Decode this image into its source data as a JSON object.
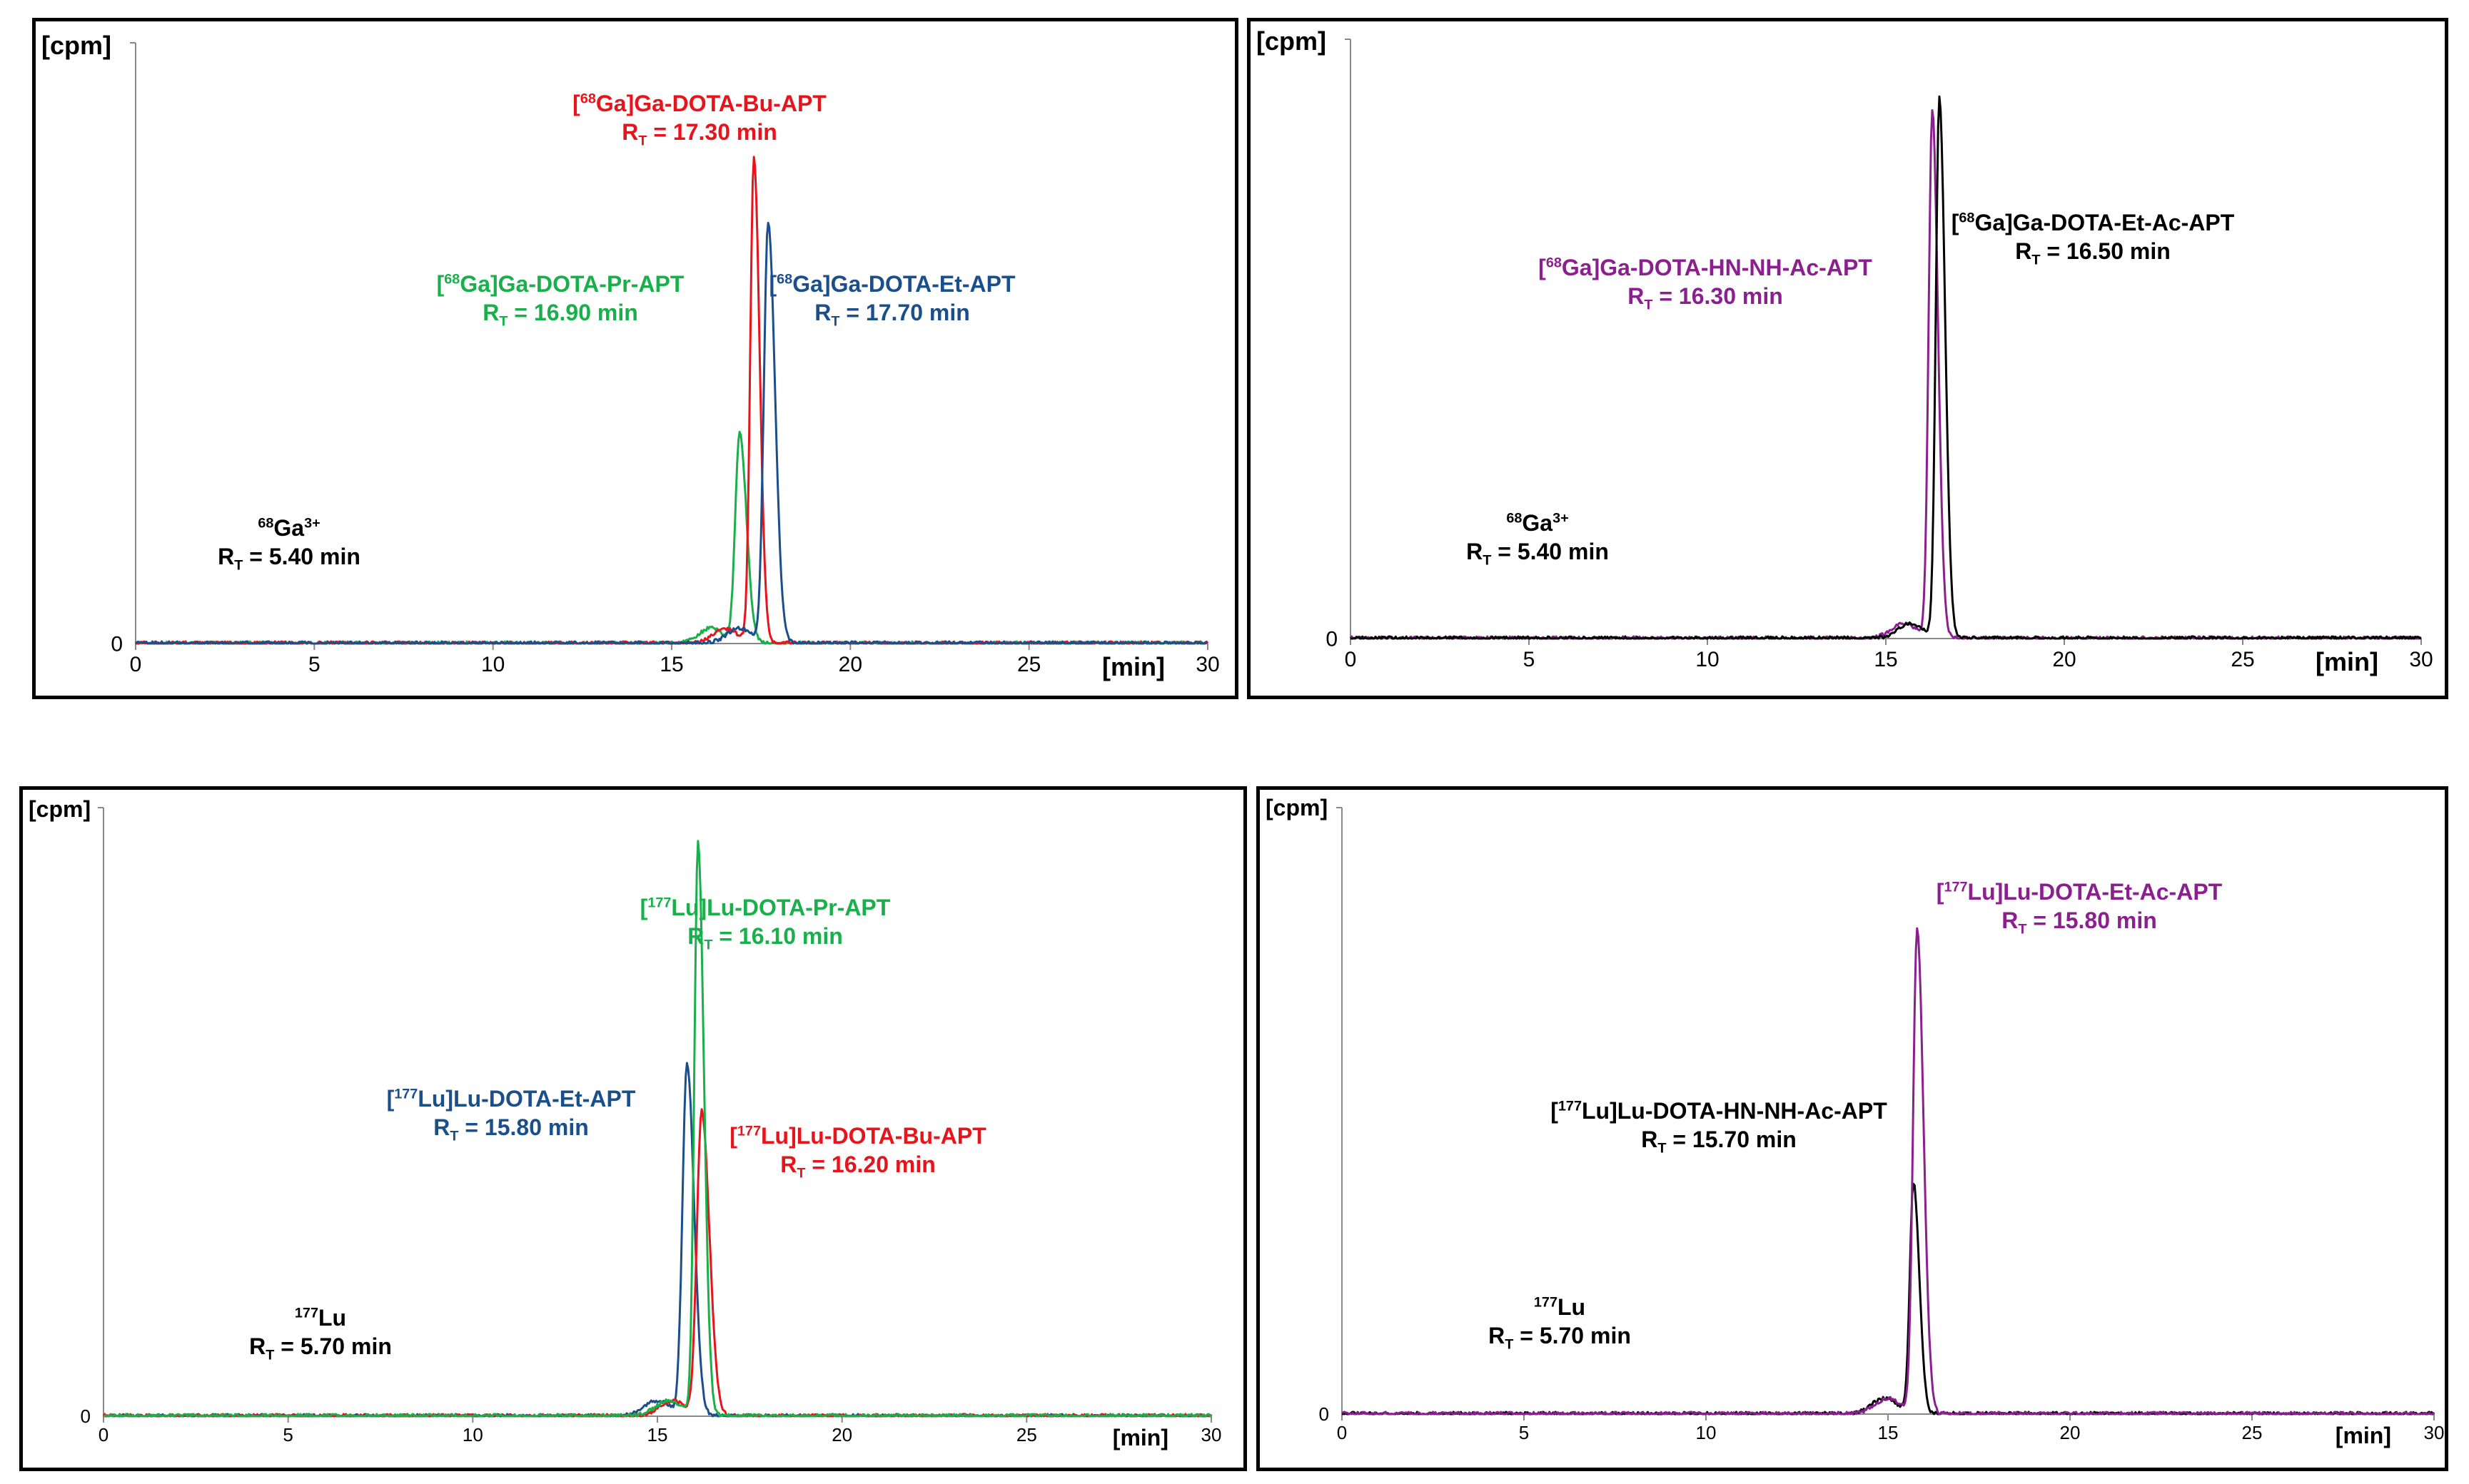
{
  "colors": {
    "red": "#e8141b",
    "green": "#19b04b",
    "blue": "#1b4f8c",
    "purple": "#8b1f8f",
    "black": "#000000"
  },
  "chart_data": [
    {
      "type": "line",
      "id": "tl",
      "ylabel": "[cpm]",
      "xlabel": "[min]",
      "y_zero_label": "0",
      "xlim": [
        0,
        30
      ],
      "ylim": [
        0,
        100
      ],
      "xticks": [
        "0",
        "5",
        "10",
        "15",
        "20",
        "25",
        "30"
      ],
      "series": [
        {
          "name": "[68Ga]Ga-DOTA-Pr-APT",
          "color": "green",
          "peak_x": 16.9,
          "peak_y": 35,
          "width": 0.12
        },
        {
          "name": "[68Ga]Ga-DOTA-Bu-APT",
          "color": "red",
          "peak_x": 17.3,
          "peak_y": 81,
          "width": 0.1
        },
        {
          "name": "[68Ga]Ga-DOTA-Et-APT",
          "color": "blue",
          "peak_x": 17.7,
          "peak_y": 70,
          "width": 0.12
        }
      ],
      "annotations": [
        {
          "iso": "68",
          "label": "Ga]Ga-DOTA-Bu-APT",
          "rt": "= 17.30 min",
          "color": "red"
        },
        {
          "iso": "68",
          "label": "Ga]Ga-DOTA-Pr-APT",
          "rt": "= 16.90 min",
          "color": "green"
        },
        {
          "iso": "68",
          "label": "Ga]Ga-DOTA-Et-APT",
          "rt": "= 17.70 min",
          "color": "blue"
        },
        {
          "iso": "68",
          "label": "Ga",
          "charge": "3+",
          "rt": "= 5.40 min",
          "color": "black"
        }
      ]
    },
    {
      "type": "line",
      "id": "tr",
      "ylabel": "[cpm]",
      "xlabel": "[min]",
      "y_zero_label": "0",
      "xlim": [
        0,
        30
      ],
      "ylim": [
        0,
        100
      ],
      "xticks": [
        "0",
        "5",
        "10",
        "15",
        "20",
        "25",
        "30"
      ],
      "series": [
        {
          "name": "[68Ga]Ga-DOTA-HN-NH-Ac-APT",
          "color": "purple",
          "peak_x": 16.3,
          "peak_y": 88,
          "width": 0.1
        },
        {
          "name": "[68Ga]Ga-DOTA-Et-Ac-APT",
          "color": "black",
          "peak_x": 16.5,
          "peak_y": 90,
          "width": 0.1
        }
      ],
      "annotations": [
        {
          "iso": "68",
          "label": "Ga]Ga-DOTA-Et-Ac-APT",
          "rt": "= 16.50 min",
          "color": "black"
        },
        {
          "iso": "68",
          "label": "Ga]Ga-DOTA-HN-NH-Ac-APT",
          "rt": "= 16.30 min",
          "color": "purple"
        },
        {
          "iso": "68",
          "label": "Ga",
          "charge": "3+",
          "rt": "= 5.40 min",
          "color": "black"
        }
      ]
    },
    {
      "type": "line",
      "id": "bl",
      "ylabel": "[cpm]",
      "xlabel": "[min]",
      "y_zero_label": "0",
      "xlim": [
        0,
        30
      ],
      "ylim": [
        0,
        100
      ],
      "xticks": [
        "0",
        "5",
        "10",
        "15",
        "20",
        "25",
        "30"
      ],
      "series": [
        {
          "name": "[177Lu]Lu-DOTA-Et-APT",
          "color": "blue",
          "peak_x": 15.8,
          "peak_y": 58,
          "width": 0.12
        },
        {
          "name": "[177Lu]Lu-DOTA-Bu-APT",
          "color": "red",
          "peak_x": 16.2,
          "peak_y": 50,
          "width": 0.13
        },
        {
          "name": "[177Lu]Lu-DOTA-Pr-APT",
          "color": "green",
          "peak_x": 16.1,
          "peak_y": 94,
          "width": 0.1
        }
      ],
      "annotations": [
        {
          "iso": "177",
          "label": "Lu]Lu-DOTA-Pr-APT",
          "rt": "= 16.10 min",
          "color": "green"
        },
        {
          "iso": "177",
          "label": "Lu]Lu-DOTA-Et-APT",
          "rt": "= 15.80 min",
          "color": "blue"
        },
        {
          "iso": "177",
          "label": "Lu]Lu-DOTA-Bu-APT",
          "rt": "= 16.20 min",
          "color": "red"
        },
        {
          "iso": "177",
          "label": "Lu",
          "rt": "= 5.70 min",
          "color": "black"
        }
      ]
    },
    {
      "type": "line",
      "id": "br",
      "ylabel": "[cpm]",
      "xlabel": "[min]",
      "y_zero_label": "0",
      "xlim": [
        0,
        30
      ],
      "ylim": [
        0,
        100
      ],
      "xticks": [
        "0",
        "5",
        "10",
        "15",
        "20",
        "25",
        "30"
      ],
      "series": [
        {
          "name": "[177Lu]Lu-DOTA-HN-NH-Ac-APT",
          "color": "black",
          "peak_x": 15.7,
          "peak_y": 38,
          "width": 0.1
        },
        {
          "name": "[177Lu]Lu-DOTA-Et-Ac-APT",
          "color": "purple",
          "peak_x": 15.8,
          "peak_y": 80,
          "width": 0.11
        }
      ],
      "annotations": [
        {
          "iso": "177",
          "label": "Lu]Lu-DOTA-Et-Ac-APT",
          "rt": "= 15.80 min",
          "color": "purple"
        },
        {
          "iso": "177",
          "label": "Lu]Lu-DOTA-HN-NH-Ac-APT",
          "rt": "= 15.70 min",
          "color": "black"
        },
        {
          "iso": "177",
          "label": "Lu",
          "rt": "= 5.70 min",
          "color": "black"
        }
      ]
    }
  ]
}
